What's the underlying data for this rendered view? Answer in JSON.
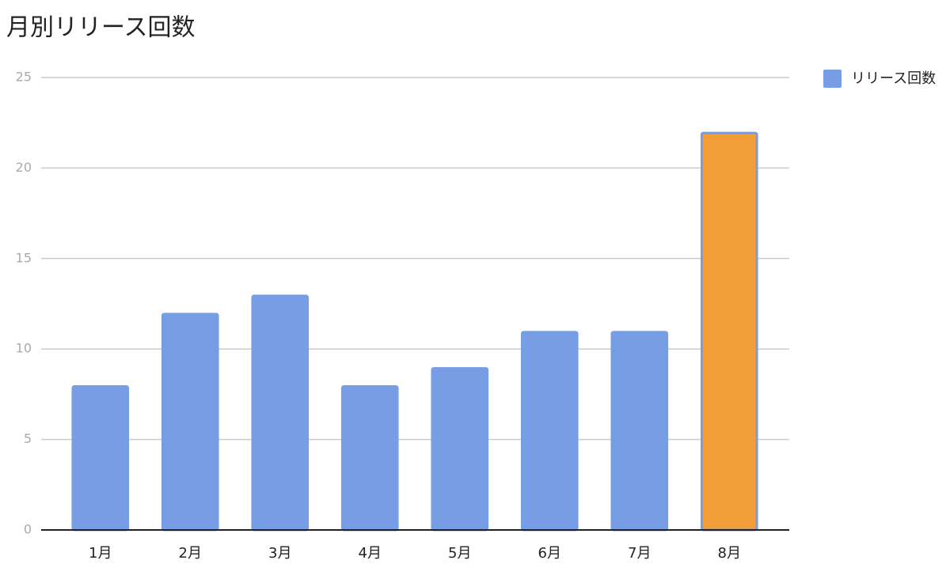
{
  "chart_data": {
    "type": "bar",
    "title": "月別リリース回数",
    "categories": [
      "1月",
      "2月",
      "3月",
      "4月",
      "5月",
      "6月",
      "7月",
      "8月"
    ],
    "series": [
      {
        "name": "リリース回数",
        "color": "#779ee5",
        "values": [
          8,
          12,
          13,
          8,
          9,
          11,
          11,
          22
        ]
      }
    ],
    "bar_colors": [
      "#779ee5",
      "#779ee5",
      "#779ee5",
      "#779ee5",
      "#779ee5",
      "#779ee5",
      "#779ee5",
      "#f29d38"
    ],
    "ylim": [
      0,
      25
    ],
    "yticks": [
      0,
      5,
      10,
      15,
      20,
      25
    ],
    "grid": true,
    "legend": "right"
  }
}
